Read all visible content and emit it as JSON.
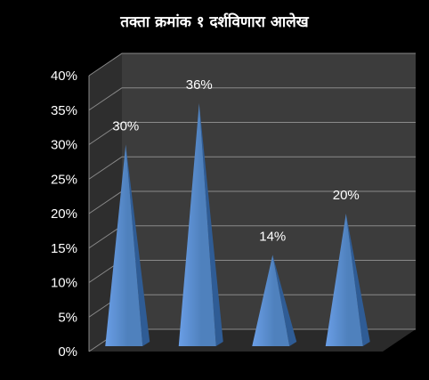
{
  "chart_data": {
    "type": "bar",
    "shape": "3d-cone",
    "title": "तक्ता क्रमांक १ दर्शविणारा आलेख",
    "categories": [
      "",
      "",
      "",
      ""
    ],
    "values": [
      30,
      36,
      14,
      20
    ],
    "data_labels": [
      "30%",
      "36%",
      "14%",
      "20%"
    ],
    "ylim": [
      0,
      40
    ],
    "yticks": [
      0,
      5,
      10,
      15,
      20,
      25,
      30,
      35,
      40
    ],
    "ytick_labels": [
      "0%",
      "5%",
      "10%",
      "15%",
      "20%",
      "25%",
      "30%",
      "35%",
      "40%"
    ],
    "xlabel": "",
    "ylabel": "",
    "grid": true,
    "legend": "none",
    "colors": {
      "background": "#000000",
      "plot_wall": "#3c3c3c",
      "side_wall": "#2e2e2e",
      "floor": "#2a2a2a",
      "gridline": "#8a8a8a",
      "bar_light": "#6a9ee6",
      "bar_mid": "#4f81bd",
      "bar_dark": "#2f5c95",
      "text": "#ffffff"
    }
  }
}
